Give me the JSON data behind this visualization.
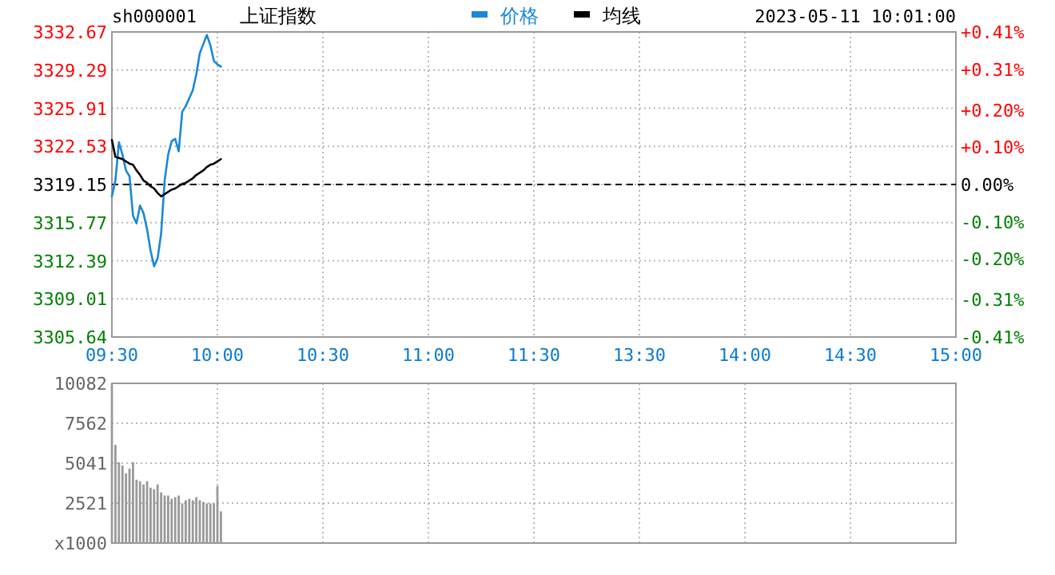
{
  "chart_data": [
    {
      "type": "line",
      "title": "上证指数",
      "subtitle": "sh000001",
      "annotations": [
        "2023-05-11 10:01:00"
      ],
      "legend": "top",
      "grid": true,
      "categories": [
        "09:30",
        null,
        null,
        null,
        null,
        null,
        null,
        null,
        null,
        null,
        null,
        null,
        null,
        null,
        null,
        null,
        null,
        null,
        null,
        null,
        null,
        null,
        null,
        null,
        null,
        null,
        null,
        null,
        null,
        null,
        "10:00",
        null,
        null,
        null,
        null,
        null,
        null,
        null,
        null,
        null,
        null,
        null,
        null,
        null,
        null,
        null,
        null,
        null,
        null,
        null,
        null,
        null,
        null,
        null,
        null,
        null,
        null,
        null,
        null,
        null,
        "10:30",
        null,
        null,
        null,
        null,
        null,
        null,
        null,
        null,
        null,
        null,
        null,
        null,
        null,
        null,
        null,
        null,
        null,
        null,
        null,
        null,
        null,
        null,
        null,
        null,
        null,
        null,
        null,
        null,
        null,
        "11:00",
        null,
        null,
        null,
        null,
        null,
        null,
        null,
        null,
        null,
        null,
        null,
        null,
        null,
        null,
        null,
        null,
        null,
        null,
        null,
        null,
        null,
        null,
        null,
        null,
        null,
        null,
        null,
        null,
        null,
        "11:30",
        null,
        null,
        null,
        null,
        null,
        null,
        null,
        null,
        null,
        null,
        null,
        null,
        null,
        null,
        null,
        null,
        null,
        null,
        null,
        null,
        null,
        null,
        null,
        null,
        null,
        null,
        null,
        null,
        null,
        "13:30",
        null,
        null,
        null,
        null,
        null,
        null,
        null,
        null,
        null,
        null,
        null,
        null,
        null,
        null,
        null,
        null,
        null,
        null,
        null,
        null,
        null,
        null,
        null,
        null,
        null,
        null,
        null,
        null,
        null,
        "14:00",
        null,
        null,
        null,
        null,
        null,
        null,
        null,
        null,
        null,
        null,
        null,
        null,
        null,
        null,
        null,
        null,
        null,
        null,
        null,
        null,
        null,
        null,
        null,
        null,
        null,
        null,
        null,
        null,
        null,
        "14:30",
        null,
        null,
        null,
        null,
        null,
        null,
        null,
        null,
        null,
        null,
        null,
        null,
        null,
        null,
        null,
        null,
        null,
        null,
        null,
        null,
        null,
        null,
        null,
        null,
        null,
        null,
        null,
        null,
        null,
        "15:00"
      ],
      "ylim": [
        3305.64,
        3332.67
      ],
      "yticks": [
        3305.64,
        3309.01,
        3312.39,
        3315.77,
        3319.15,
        3322.53,
        3325.91,
        3329.29,
        3332.67
      ],
      "y2lim": [
        -0.41,
        0.41
      ],
      "y2ticks": [
        {
          "value": -0.41,
          "label": "-0.41%"
        },
        {
          "value": -0.31,
          "label": "-0.31%"
        },
        {
          "value": -0.2,
          "label": "-0.20%"
        },
        {
          "value": -0.1,
          "label": "-0.10%"
        },
        {
          "value": 0,
          "label": "0.00%"
        },
        {
          "value": 0.1,
          "label": "+0.10%"
        },
        {
          "value": 0.2,
          "label": "+0.20%"
        },
        {
          "value": 0.31,
          "label": "+0.31%"
        },
        {
          "value": 0.41,
          "label": "+0.41%"
        }
      ],
      "ref_lines": [
        {
          "axis": "y",
          "value": 3319.15,
          "color": "#000000",
          "line_style": "dashed"
        }
      ],
      "series": [
        {
          "name": "价格",
          "color": "#1a88d6",
          "values": [
            3318.1,
            3319.5,
            3322.9,
            3321.8,
            3320.4,
            3319.9,
            3316.4,
            3315.7,
            3317.3,
            3316.6,
            3315.2,
            3313.3,
            3311.9,
            3312.6,
            3314.8,
            3319.5,
            3321.8,
            3323.0,
            3323.2,
            3322.1,
            3325.6,
            3326.1,
            3326.8,
            3327.5,
            3328.9,
            3330.8,
            3331.6,
            3332.4,
            3331.5,
            3330.1,
            3329.8,
            3329.6,
            null,
            null,
            null,
            null,
            null,
            null,
            null,
            null,
            null,
            null,
            null,
            null,
            null,
            null,
            null,
            null,
            null,
            null,
            null,
            null,
            null,
            null,
            null,
            null,
            null,
            null,
            null,
            null,
            null,
            null,
            null,
            null,
            null,
            null,
            null,
            null,
            null,
            null,
            null,
            null,
            null,
            null,
            null,
            null,
            null,
            null,
            null,
            null,
            null,
            null,
            null,
            null,
            null,
            null,
            null,
            null,
            null,
            null,
            null,
            null,
            null,
            null,
            null,
            null,
            null,
            null,
            null,
            null,
            null,
            null,
            null,
            null,
            null,
            null,
            null,
            null,
            null,
            null,
            null,
            null,
            null,
            null,
            null,
            null,
            null,
            null,
            null,
            null,
            null,
            null,
            null,
            null,
            null,
            null,
            null,
            null,
            null,
            null,
            null,
            null,
            null,
            null,
            null,
            null,
            null,
            null,
            null,
            null,
            null,
            null,
            null,
            null,
            null,
            null,
            null,
            null,
            null,
            null,
            null,
            null,
            null,
            null,
            null,
            null,
            null,
            null,
            null,
            null,
            null,
            null,
            null,
            null,
            null,
            null,
            null,
            null,
            null,
            null,
            null,
            null,
            null,
            null,
            null,
            null,
            null,
            null,
            null,
            null,
            null,
            null,
            null,
            null,
            null,
            null,
            null,
            null,
            null,
            null,
            null,
            null,
            null,
            null,
            null,
            null,
            null,
            null,
            null,
            null,
            null,
            null,
            null,
            null,
            null,
            null,
            null,
            null,
            null,
            null,
            null,
            null,
            null,
            null,
            null,
            null,
            null,
            null,
            null,
            null,
            null,
            null,
            null,
            null,
            null,
            null,
            null,
            null,
            null,
            null,
            null,
            null,
            null,
            null,
            null,
            null,
            null,
            null,
            null,
            null,
            null
          ]
        },
        {
          "name": "均线",
          "color": "#000000",
          "values": [
            3323.1,
            3321.6,
            3321.5,
            3321.4,
            3321.2,
            3321.0,
            3320.9,
            3320.4,
            3320.0,
            3319.5,
            3319.3,
            3319.0,
            3318.8,
            3318.4,
            3318.1,
            3318.3,
            3318.5,
            3318.7,
            3318.8,
            3319.0,
            3319.2,
            3319.3,
            3319.5,
            3319.7,
            3320.0,
            3320.2,
            3320.4,
            3320.7,
            3320.9,
            3321.0,
            3321.2,
            3321.4,
            null,
            null,
            null,
            null,
            null,
            null,
            null,
            null,
            null,
            null,
            null,
            null,
            null,
            null,
            null,
            null,
            null,
            null,
            null,
            null,
            null,
            null,
            null,
            null,
            null,
            null,
            null,
            null,
            null,
            null,
            null,
            null,
            null,
            null,
            null,
            null,
            null,
            null,
            null,
            null,
            null,
            null,
            null,
            null,
            null,
            null,
            null,
            null,
            null,
            null,
            null,
            null,
            null,
            null,
            null,
            null,
            null,
            null,
            null,
            null,
            null,
            null,
            null,
            null,
            null,
            null,
            null,
            null,
            null,
            null,
            null,
            null,
            null,
            null,
            null,
            null,
            null,
            null,
            null,
            null,
            null,
            null,
            null,
            null,
            null,
            null,
            null,
            null,
            null,
            null,
            null,
            null,
            null,
            null,
            null,
            null,
            null,
            null,
            null,
            null,
            null,
            null,
            null,
            null,
            null,
            null,
            null,
            null,
            null,
            null,
            null,
            null,
            null,
            null,
            null,
            null,
            null,
            null,
            null,
            null,
            null,
            null,
            null,
            null,
            null,
            null,
            null,
            null,
            null,
            null,
            null,
            null,
            null,
            null,
            null,
            null,
            null,
            null,
            null,
            null,
            null,
            null,
            null,
            null,
            null,
            null,
            null,
            null,
            null,
            null,
            null,
            null,
            null,
            null,
            null,
            null,
            null,
            null,
            null,
            null,
            null,
            null,
            null,
            null,
            null,
            null,
            null,
            null,
            null,
            null,
            null,
            null,
            null,
            null,
            null,
            null,
            null,
            null,
            null,
            null,
            null,
            null,
            null,
            null,
            null,
            null,
            null,
            null,
            null,
            null,
            null,
            null,
            null,
            null,
            null,
            null,
            null,
            null,
            null,
            null,
            null,
            null,
            null,
            null,
            null,
            null,
            null,
            null,
            null
          ]
        }
      ]
    },
    {
      "type": "bar",
      "tick_labels": "y",
      "grid": true,
      "color": "#999999",
      "categories": [
        null,
        null,
        null,
        null,
        null,
        null,
        null,
        null,
        null,
        null,
        null,
        null,
        null,
        null,
        null,
        null,
        null,
        null,
        null,
        null,
        null,
        null,
        null,
        null,
        null,
        null,
        null,
        null,
        null,
        null,
        null,
        null,
        null,
        null,
        null,
        null,
        null,
        null,
        null,
        null,
        null,
        null,
        null,
        null,
        null,
        null,
        null,
        null,
        null,
        null,
        null,
        null,
        null,
        null,
        null,
        null,
        null,
        null,
        null,
        null,
        null,
        null,
        null,
        null,
        null,
        null,
        null,
        null,
        null,
        null,
        null,
        null,
        null,
        null,
        null,
        null,
        null,
        null,
        null,
        null,
        null,
        null,
        null,
        null,
        null,
        null,
        null,
        null,
        null,
        null,
        null,
        null,
        null,
        null,
        null,
        null,
        null,
        null,
        null,
        null,
        null,
        null,
        null,
        null,
        null,
        null,
        null,
        null,
        null,
        null,
        null,
        null,
        null,
        null,
        null,
        null,
        null,
        null,
        null,
        null,
        null,
        null,
        null,
        null,
        null,
        null,
        null,
        null,
        null,
        null,
        null,
        null,
        null,
        null,
        null,
        null,
        null,
        null,
        null,
        null,
        null,
        null,
        null,
        null,
        null,
        null,
        null,
        null,
        null,
        null,
        null,
        null,
        null,
        null,
        null,
        null,
        null,
        null,
        null,
        null,
        null,
        null,
        null,
        null,
        null,
        null,
        null,
        null,
        null,
        null,
        null,
        null,
        null,
        null,
        null,
        null,
        null,
        null,
        null,
        null,
        null,
        null,
        null,
        null,
        null,
        null,
        null,
        null,
        null,
        null,
        null,
        null,
        null,
        null,
        null,
        null,
        null,
        null,
        null,
        null,
        null,
        null,
        null,
        null,
        null,
        null,
        null,
        null,
        null,
        null,
        null,
        null,
        null,
        null,
        null,
        null,
        null,
        null,
        null,
        null,
        null,
        null,
        null,
        null,
        null,
        null,
        null,
        null,
        null,
        null,
        null,
        null,
        null,
        null,
        null,
        null,
        null,
        null,
        null,
        null,
        null
      ],
      "ylim": [
        0,
        10082
      ],
      "yticks": [
        {
          "value": 0,
          "label": "x1000"
        },
        2521,
        5041,
        7562,
        10082
      ],
      "values": [
        10000,
        6200,
        5100,
        4900,
        4400,
        4700,
        5100,
        4000,
        3900,
        3700,
        3900,
        3500,
        3400,
        3700,
        3200,
        3000,
        3000,
        2800,
        2900,
        3000,
        2500,
        2700,
        2800,
        2700,
        2900,
        2700,
        2600,
        2500,
        2500,
        2500,
        3600,
        2000,
        null,
        null,
        null,
        null,
        null,
        null,
        null,
        null,
        null,
        null,
        null,
        null,
        null,
        null,
        null,
        null,
        null,
        null,
        null,
        null,
        null,
        null,
        null,
        null,
        null,
        null,
        null,
        null,
        null,
        null,
        null,
        null,
        null,
        null,
        null,
        null,
        null,
        null,
        null,
        null,
        null,
        null,
        null,
        null,
        null,
        null,
        null,
        null,
        null,
        null,
        null,
        null,
        null,
        null,
        null,
        null,
        null,
        null,
        null,
        null,
        null,
        null,
        null,
        null,
        null,
        null,
        null,
        null,
        null,
        null,
        null,
        null,
        null,
        null,
        null,
        null,
        null,
        null,
        null,
        null,
        null,
        null,
        null,
        null,
        null,
        null,
        null,
        null,
        null,
        null,
        null,
        null,
        null,
        null,
        null,
        null,
        null,
        null,
        null,
        null,
        null,
        null,
        null,
        null,
        null,
        null,
        null,
        null,
        null,
        null,
        null,
        null,
        null,
        null,
        null,
        null,
        null,
        null,
        null,
        null,
        null,
        null,
        null,
        null,
        null,
        null,
        null,
        null,
        null,
        null,
        null,
        null,
        null,
        null,
        null,
        null,
        null,
        null,
        null,
        null,
        null,
        null,
        null,
        null,
        null,
        null,
        null,
        null,
        null,
        null,
        null,
        null,
        null,
        null,
        null,
        null,
        null,
        null,
        null,
        null,
        null,
        null,
        null,
        null,
        null,
        null,
        null,
        null,
        null,
        null,
        null,
        null,
        null,
        null,
        null,
        null,
        null,
        null,
        null,
        null,
        null,
        null,
        null,
        null,
        null,
        null,
        null,
        null,
        null,
        null,
        null,
        null,
        null,
        null,
        null,
        null,
        null,
        null,
        null,
        null,
        null,
        null,
        null,
        null,
        null,
        null,
        null,
        null,
        null
      ]
    }
  ]
}
